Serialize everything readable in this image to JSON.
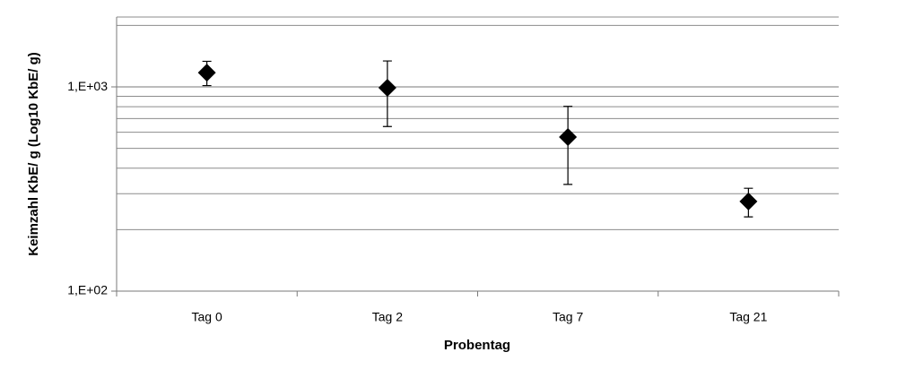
{
  "chart_data": {
    "type": "scatter",
    "x_label": "Probentag",
    "y_label": "Keimzahl KbE/ g (Log10 KbE/ g)",
    "categories": [
      "Tag 0",
      "Tag 2",
      "Tag 7",
      "Tag 21"
    ],
    "values": [
      1175,
      990,
      568,
      275
    ],
    "errors": [
      160,
      350,
      235,
      44
    ],
    "color": "#000000",
    "log_scale": true,
    "ylim": [
      100,
      2200
    ],
    "yticks": [
      {
        "value": 100,
        "label": "1,E+02"
      },
      {
        "value": 1000,
        "label": "1,E+03"
      }
    ],
    "minor_grid": [
      200,
      300,
      400,
      500,
      600,
      700,
      800,
      900,
      2000
    ],
    "grid": true
  }
}
